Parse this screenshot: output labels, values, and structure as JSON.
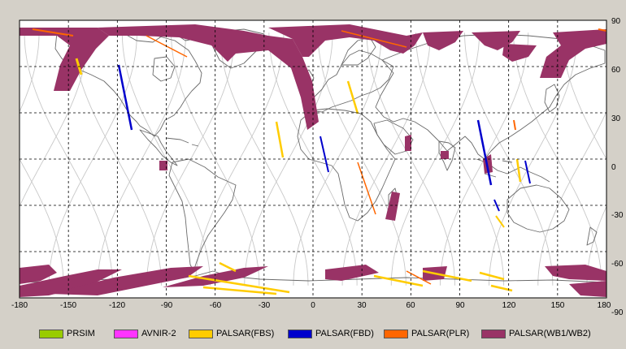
{
  "map": {
    "x_ticks": [
      "-180",
      "-150",
      "-120",
      "-90",
      "-60",
      "-30",
      "0",
      "30",
      "60",
      "90",
      "120",
      "150",
      "180"
    ],
    "y_ticks": [
      "90",
      "60",
      "30",
      "0",
      "-30",
      "-60",
      "-90"
    ],
    "colors": {
      "background": "#d4d0c8",
      "plot": "#ffffff",
      "coast": "#6a6a6a",
      "orbit": "#c8c8c8",
      "grid": "#000000"
    }
  },
  "legend": [
    {
      "label": "PRSIM",
      "color": "#99cc00"
    },
    {
      "label": "AVNIR-2",
      "color": "#ff33ff"
    },
    {
      "label": "PALSAR(FBS)",
      "color": "#ffcc00"
    },
    {
      "label": "PALSAR(FBD)",
      "color": "#0000cc"
    },
    {
      "label": "PALSAR(PLR)",
      "color": "#ff6600"
    },
    {
      "label": "PALSAR(WB1/WB2)",
      "color": "#993366"
    }
  ]
}
